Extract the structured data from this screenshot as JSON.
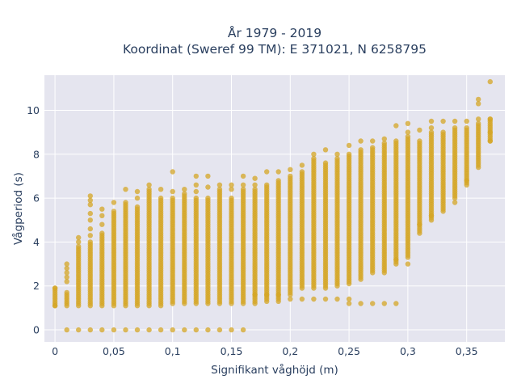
{
  "chart_data": {
    "type": "scatter",
    "title_line1": "År 1979 - 2019",
    "title_line2": "Koordinat (Sweref 99 TM): E 371021, N 6258795",
    "xlabel": "Signifikant våghöjd (m)",
    "ylabel": "Vågperiod (s)",
    "xlim": [
      -0.009,
      0.3825
    ],
    "ylim": [
      -0.55,
      11.6
    ],
    "x_ticks": [
      {
        "value": 0,
        "label": "0"
      },
      {
        "value": 0.05,
        "label": "0,05"
      },
      {
        "value": 0.1,
        "label": "0,1"
      },
      {
        "value": 0.15,
        "label": "0,15"
      },
      {
        "value": 0.2,
        "label": "0,2"
      },
      {
        "value": 0.25,
        "label": "0,25"
      },
      {
        "value": 0.3,
        "label": "0,3"
      },
      {
        "value": 0.35,
        "label": "0,35"
      }
    ],
    "y_ticks": [
      {
        "value": 0,
        "label": "0"
      },
      {
        "value": 2,
        "label": "2"
      },
      {
        "value": 4,
        "label": "4"
      },
      {
        "value": 6,
        "label": "6"
      },
      {
        "value": 8,
        "label": "8"
      },
      {
        "value": 10,
        "label": "10"
      }
    ],
    "grid": true,
    "marker_color": "#d4a526",
    "plot_bgcolor": "#e5e5ef",
    "columns": [
      {
        "x": 0.0,
        "min": 1.1,
        "max": 1.9,
        "points": [
          1.1,
          1.9
        ]
      },
      {
        "x": 0.01,
        "min": 1.1,
        "max": 1.7,
        "points": [
          0.0,
          2.2,
          2.4,
          2.6,
          2.8,
          3.0
        ]
      },
      {
        "x": 0.02,
        "min": 1.1,
        "max": 3.8,
        "points": [
          0.0,
          4.0,
          4.2
        ]
      },
      {
        "x": 0.03,
        "min": 1.1,
        "max": 4.0,
        "points": [
          0.0,
          4.3,
          4.6,
          5.0,
          5.3,
          5.7,
          5.9,
          6.1
        ]
      },
      {
        "x": 0.04,
        "min": 1.1,
        "max": 4.4,
        "points": [
          0.0,
          4.8,
          5.2,
          5.5
        ]
      },
      {
        "x": 0.05,
        "min": 1.1,
        "max": 5.4,
        "points": [
          0.0,
          5.8
        ]
      },
      {
        "x": 0.06,
        "min": 1.1,
        "max": 5.8,
        "points": [
          0.0,
          6.4
        ]
      },
      {
        "x": 0.07,
        "min": 1.1,
        "max": 5.6,
        "points": [
          0.0,
          6.0,
          6.3
        ]
      },
      {
        "x": 0.08,
        "min": 1.1,
        "max": 6.4,
        "points": [
          0.0,
          6.6
        ]
      },
      {
        "x": 0.09,
        "min": 1.1,
        "max": 6.0,
        "points": [
          0.0,
          6.4
        ]
      },
      {
        "x": 0.1,
        "min": 1.2,
        "max": 6.0,
        "points": [
          0.0,
          6.3,
          7.2
        ]
      },
      {
        "x": 0.11,
        "min": 1.2,
        "max": 6.2,
        "points": [
          0.0,
          6.4
        ]
      },
      {
        "x": 0.12,
        "min": 1.2,
        "max": 6.0,
        "points": [
          0.0,
          6.3,
          6.6,
          7.0
        ]
      },
      {
        "x": 0.13,
        "min": 1.2,
        "max": 6.0,
        "points": [
          0.0,
          6.5,
          7.0
        ]
      },
      {
        "x": 0.14,
        "min": 1.2,
        "max": 6.4,
        "points": [
          0.0,
          6.6
        ]
      },
      {
        "x": 0.15,
        "min": 1.2,
        "max": 6.0,
        "points": [
          0.0,
          6.4,
          6.6
        ]
      },
      {
        "x": 0.16,
        "min": 1.2,
        "max": 6.4,
        "points": [
          0.0,
          6.6,
          7.0
        ]
      },
      {
        "x": 0.17,
        "min": 1.2,
        "max": 6.4,
        "points": [
          1.6,
          6.6,
          6.9
        ]
      },
      {
        "x": 0.18,
        "min": 1.3,
        "max": 6.6,
        "points": [
          1.6,
          7.2
        ]
      },
      {
        "x": 0.19,
        "min": 1.3,
        "max": 6.8,
        "points": [
          1.6,
          7.2
        ]
      },
      {
        "x": 0.2,
        "min": 1.6,
        "max": 7.0,
        "points": [
          1.4,
          7.3
        ]
      },
      {
        "x": 0.21,
        "min": 1.9,
        "max": 7.2,
        "points": [
          1.4,
          7.5
        ]
      },
      {
        "x": 0.22,
        "min": 1.9,
        "max": 7.8,
        "points": [
          1.4,
          8.0
        ]
      },
      {
        "x": 0.23,
        "min": 1.9,
        "max": 7.6,
        "points": [
          1.4,
          8.2
        ]
      },
      {
        "x": 0.24,
        "min": 2.0,
        "max": 7.8,
        "points": [
          1.4,
          8.0
        ]
      },
      {
        "x": 0.25,
        "min": 2.1,
        "max": 8.0,
        "points": [
          1.2,
          1.4,
          8.4
        ]
      },
      {
        "x": 0.26,
        "min": 2.3,
        "max": 8.2,
        "points": [
          1.2,
          8.6
        ]
      },
      {
        "x": 0.27,
        "min": 2.6,
        "max": 8.3,
        "points": [
          1.2,
          8.6
        ]
      },
      {
        "x": 0.28,
        "min": 2.6,
        "max": 8.4,
        "points": [
          1.2,
          8.5,
          8.7
        ]
      },
      {
        "x": 0.29,
        "min": 3.0,
        "max": 8.6,
        "points": [
          1.2,
          3.2,
          9.3
        ]
      },
      {
        "x": 0.3,
        "min": 3.3,
        "max": 8.8,
        "points": [
          3.0,
          9.0,
          9.4
        ]
      },
      {
        "x": 0.31,
        "min": 4.4,
        "max": 8.6,
        "points": [
          4.8,
          9.1
        ]
      },
      {
        "x": 0.32,
        "min": 5.0,
        "max": 9.0,
        "points": [
          5.2,
          9.2,
          9.5
        ]
      },
      {
        "x": 0.33,
        "min": 5.5,
        "max": 9.0,
        "points": [
          5.4,
          9.5
        ]
      },
      {
        "x": 0.34,
        "min": 6.0,
        "max": 9.2,
        "points": [
          5.8,
          9.5
        ]
      },
      {
        "x": 0.35,
        "min": 6.6,
        "max": 9.2,
        "points": [
          6.8,
          9.5
        ]
      },
      {
        "x": 0.36,
        "min": 7.4,
        "max": 9.4,
        "points": [
          9.6,
          10.3,
          10.5
        ]
      },
      {
        "x": 0.37,
        "min": 8.6,
        "max": 9.6,
        "points": [
          8.6,
          9.0,
          9.6,
          11.3
        ]
      }
    ]
  }
}
